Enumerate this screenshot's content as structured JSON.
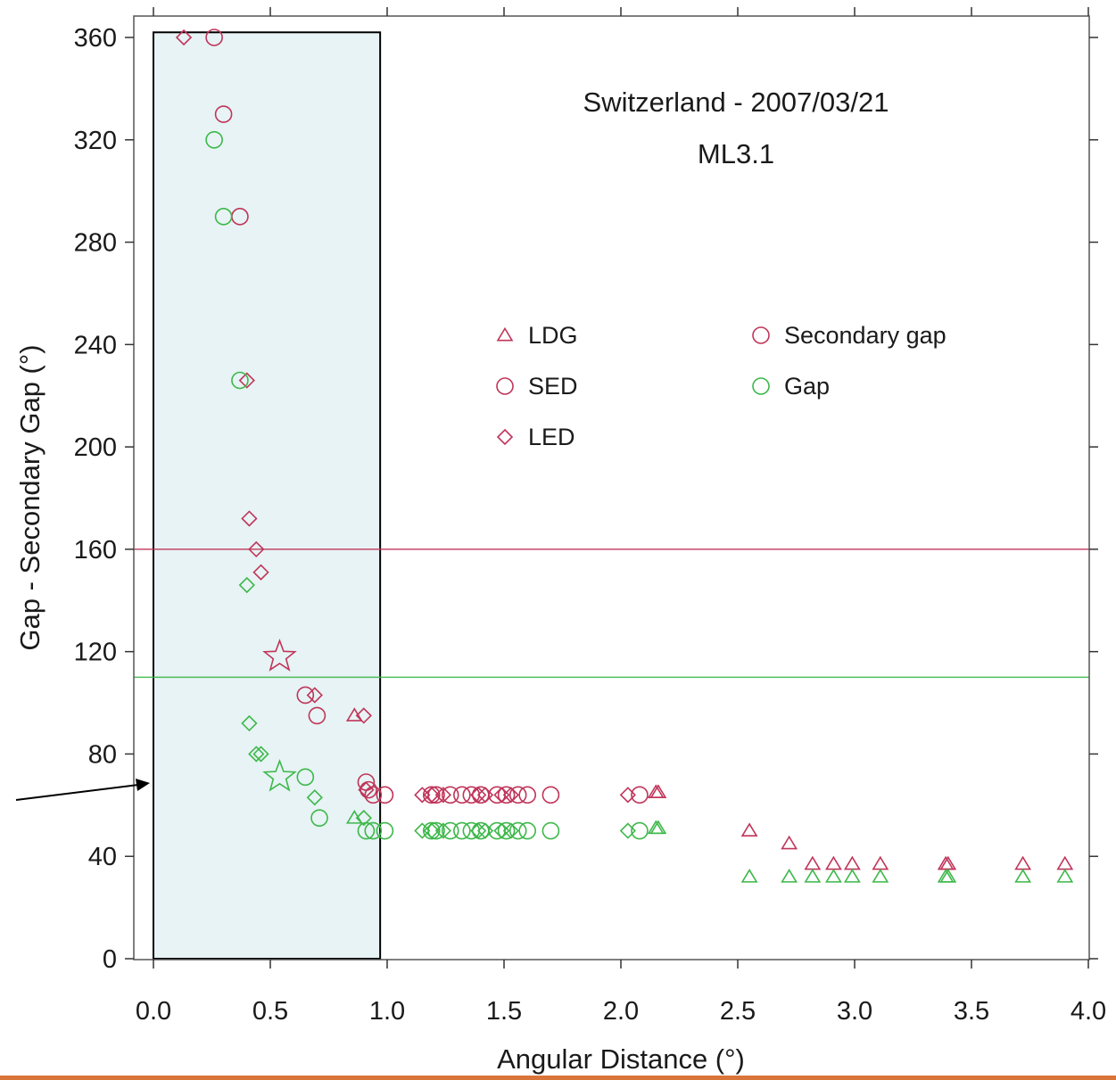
{
  "chart_data": {
    "type": "scatter",
    "title": "Switzerland - 2007/03/21",
    "subtitle": "ML3.1",
    "xlabel": "Angular Distance (°)",
    "ylabel": "Gap - Secondary Gap (°)",
    "xlim": [
      0,
      4
    ],
    "ylim": [
      0,
      360
    ],
    "x_ticks": [
      "0.0",
      "0.5",
      "1.0",
      "1.5",
      "2.0",
      "2.5",
      "3.0",
      "3.5",
      "4.0"
    ],
    "y_ticks": [
      "0",
      "40",
      "80",
      "120",
      "160",
      "200",
      "240",
      "280",
      "320",
      "360"
    ],
    "grid": false,
    "legend_position": "upper-middle",
    "colors": {
      "secondary_gap": "#c0355a",
      "gap": "#3db84a",
      "shade": "#e7f3f4",
      "bottom_bar": "#d9743a"
    },
    "thresholds": [
      {
        "series": "secondary_gap",
        "y": 160
      },
      {
        "series": "gap",
        "y": 110
      }
    ],
    "highlight_region": {
      "x": [
        0,
        0.97
      ],
      "y": [
        0,
        362
      ]
    },
    "legend": [
      {
        "label": "LDG",
        "marker": "triangle",
        "color": "secondary_gap"
      },
      {
        "label": "SED",
        "marker": "circle",
        "color": "secondary_gap"
      },
      {
        "label": "LED",
        "marker": "diamond",
        "color": "secondary_gap"
      },
      {
        "label": "Secondary gap",
        "marker": "circle",
        "color": "secondary_gap"
      },
      {
        "label": "Gap",
        "marker": "circle",
        "color": "gap"
      }
    ],
    "series": [
      {
        "name": "secondary_gap",
        "marker": "circle",
        "points": [
          [
            0.26,
            360
          ],
          [
            0.3,
            330
          ],
          [
            0.37,
            290
          ],
          [
            0.65,
            103
          ],
          [
            0.7,
            95
          ],
          [
            0.91,
            69
          ],
          [
            0.92,
            66
          ],
          [
            0.94,
            64
          ],
          [
            0.99,
            64
          ],
          [
            1.19,
            64
          ],
          [
            1.21,
            64
          ],
          [
            1.27,
            64
          ],
          [
            1.32,
            64
          ],
          [
            1.36,
            64
          ],
          [
            1.4,
            64
          ],
          [
            1.47,
            64
          ],
          [
            1.51,
            64
          ],
          [
            1.56,
            64
          ],
          [
            1.6,
            64
          ],
          [
            1.7,
            64
          ],
          [
            2.08,
            64
          ]
        ]
      },
      {
        "name": "secondary_gap",
        "marker": "diamond",
        "points": [
          [
            0.13,
            360
          ],
          [
            0.4,
            226
          ],
          [
            0.41,
            172
          ],
          [
            0.44,
            160
          ],
          [
            0.46,
            151
          ],
          [
            0.69,
            103
          ],
          [
            0.9,
            95
          ],
          [
            0.91,
            66
          ],
          [
            1.15,
            64
          ],
          [
            1.19,
            64
          ],
          [
            1.24,
            64
          ],
          [
            1.39,
            64
          ],
          [
            1.42,
            64
          ],
          [
            1.49,
            64
          ],
          [
            1.53,
            64
          ],
          [
            2.03,
            64
          ]
        ]
      },
      {
        "name": "secondary_gap",
        "marker": "triangle",
        "points": [
          [
            0.86,
            95
          ],
          [
            2.15,
            65
          ],
          [
            2.16,
            65
          ],
          [
            2.55,
            50
          ],
          [
            2.72,
            45
          ],
          [
            2.82,
            37
          ],
          [
            2.91,
            37
          ],
          [
            2.99,
            37
          ],
          [
            3.11,
            37
          ],
          [
            3.39,
            37
          ],
          [
            3.4,
            37
          ],
          [
            3.72,
            37
          ],
          [
            3.9,
            37
          ]
        ]
      },
      {
        "name": "secondary_gap",
        "marker": "star",
        "points": [
          [
            0.54,
            118
          ]
        ]
      },
      {
        "name": "gap",
        "marker": "circle",
        "points": [
          [
            0.26,
            320
          ],
          [
            0.3,
            290
          ],
          [
            0.37,
            226
          ],
          [
            0.65,
            71
          ],
          [
            0.71,
            55
          ],
          [
            0.91,
            50
          ],
          [
            0.94,
            50
          ],
          [
            0.99,
            50
          ],
          [
            1.19,
            50
          ],
          [
            1.21,
            50
          ],
          [
            1.27,
            50
          ],
          [
            1.32,
            50
          ],
          [
            1.36,
            50
          ],
          [
            1.4,
            50
          ],
          [
            1.47,
            50
          ],
          [
            1.51,
            50
          ],
          [
            1.56,
            50
          ],
          [
            1.6,
            50
          ],
          [
            1.7,
            50
          ],
          [
            2.08,
            50
          ]
        ]
      },
      {
        "name": "gap",
        "marker": "diamond",
        "points": [
          [
            0.4,
            146
          ],
          [
            0.41,
            92
          ],
          [
            0.44,
            80
          ],
          [
            0.46,
            80
          ],
          [
            0.69,
            63
          ],
          [
            0.9,
            55
          ],
          [
            1.15,
            50
          ],
          [
            1.19,
            50
          ],
          [
            1.24,
            50
          ],
          [
            1.39,
            50
          ],
          [
            1.42,
            50
          ],
          [
            1.49,
            50
          ],
          [
            1.53,
            50
          ],
          [
            2.03,
            50
          ]
        ]
      },
      {
        "name": "gap",
        "marker": "triangle",
        "points": [
          [
            0.86,
            55
          ],
          [
            2.15,
            51
          ],
          [
            2.16,
            51
          ],
          [
            2.55,
            32
          ],
          [
            2.72,
            32
          ],
          [
            2.82,
            32
          ],
          [
            2.91,
            32
          ],
          [
            2.99,
            32
          ],
          [
            3.11,
            32
          ],
          [
            3.39,
            32
          ],
          [
            3.4,
            32
          ],
          [
            3.72,
            32
          ],
          [
            3.9,
            32
          ]
        ]
      },
      {
        "name": "gap",
        "marker": "star",
        "points": [
          [
            0.54,
            71
          ]
        ]
      }
    ]
  }
}
